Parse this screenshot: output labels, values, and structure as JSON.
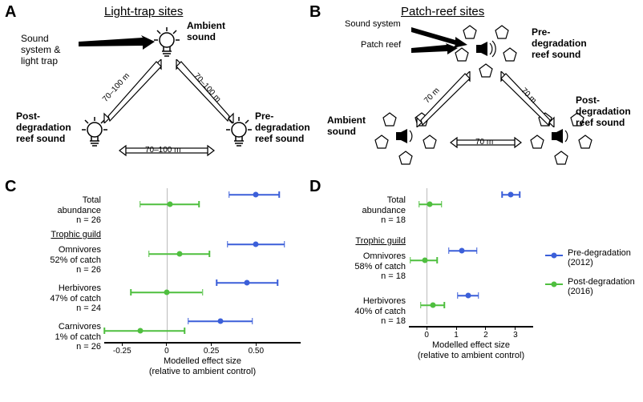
{
  "colors": {
    "blue": "#3b5fd9",
    "green": "#4fbf3f",
    "black": "#000000",
    "grey": "#bbbbbb",
    "white": "#ffffff"
  },
  "panels": {
    "A": {
      "label": "A",
      "title": "Light-trap sites"
    },
    "B": {
      "label": "B",
      "title": "Patch-reef sites"
    },
    "C": {
      "label": "C"
    },
    "D": {
      "label": "D"
    }
  },
  "panelA_labels": {
    "sound_system_light_trap": "Sound\nsystem &\nlight trap",
    "ambient_sound": "Ambient\nsound",
    "post_degradation": "Post-\ndegradation\nreef sound",
    "pre_degradation": "Pre-\ndegradation\nreef sound",
    "distance_side": "70–100 m",
    "distance_bottom": "70–100 m"
  },
  "panelB_labels": {
    "sound_system": "Sound system",
    "patch_reef": "Patch reef",
    "pre_degradation": "Pre-\ndegradation\nreef sound",
    "ambient_sound": "Ambient\nsound",
    "post_degradation": "Post-\ndegradation\nreef sound",
    "distance_side": "70 m",
    "distance_bottom": "70 m"
  },
  "legend": {
    "pre": "Pre-degradation\n(2012)",
    "post": "Post-degradation\n(2016)"
  },
  "chartC": {
    "xlabel": "Modelled effect size\n(relative to ambient control)",
    "xmin": -0.35,
    "xmax": 0.75,
    "ticks": [
      -0.25,
      0,
      0.25,
      0.5
    ],
    "tick_labels": [
      "-0.25",
      "0",
      "0.25",
      "0.50"
    ],
    "zero_line_at": 0,
    "rows": [
      {
        "label_html": "Total<br>abundance<br>n = 26",
        "bold_first": true,
        "blue": {
          "x": 0.5,
          "lo": 0.35,
          "hi": 0.63
        },
        "green": {
          "x": 0.02,
          "lo": -0.15,
          "hi": 0.18
        }
      },
      {
        "header": "Trophic guild",
        "label_html": "Omnivores<br>52% of catch<br>n = 26",
        "blue": {
          "x": 0.5,
          "lo": 0.34,
          "hi": 0.66
        },
        "green": {
          "x": 0.07,
          "lo": -0.1,
          "hi": 0.24
        }
      },
      {
        "label_html": "Herbivores<br>47% of catch<br>n = 24",
        "blue": {
          "x": 0.45,
          "lo": 0.28,
          "hi": 0.62
        },
        "green": {
          "x": 0.0,
          "lo": -0.2,
          "hi": 0.2
        }
      },
      {
        "label_html": "Carnivores<br>1% of catch<br>n = 26",
        "blue": {
          "x": 0.3,
          "lo": 0.12,
          "hi": 0.48
        },
        "green": {
          "x": -0.15,
          "lo": -0.35,
          "hi": 0.1
        }
      }
    ]
  },
  "chartD": {
    "xlabel": "Modelled effect size\n(relative to ambient control)",
    "xmin": -0.6,
    "xmax": 3.6,
    "ticks": [
      0,
      1,
      2,
      3
    ],
    "tick_labels": [
      "0",
      "1",
      "2",
      "3"
    ],
    "zero_line_at": 0,
    "rows": [
      {
        "label_html": "Total<br>abundance<br>n = 18",
        "bold_first": true,
        "blue": {
          "x": 2.85,
          "lo": 2.55,
          "hi": 3.15
        },
        "green": {
          "x": 0.1,
          "lo": -0.25,
          "hi": 0.5
        }
      },
      {
        "header": "Trophic guild",
        "label_html": "Omnivores<br>58% of catch<br>n = 18",
        "blue": {
          "x": 1.2,
          "lo": 0.75,
          "hi": 1.7
        },
        "green": {
          "x": -0.05,
          "lo": -0.55,
          "hi": 0.35
        }
      },
      {
        "label_html": "Herbivores<br>40% of catch<br>n = 18",
        "blue": {
          "x": 1.4,
          "lo": 1.05,
          "hi": 1.75
        },
        "green": {
          "x": 0.2,
          "lo": -0.2,
          "hi": 0.6
        }
      }
    ]
  }
}
